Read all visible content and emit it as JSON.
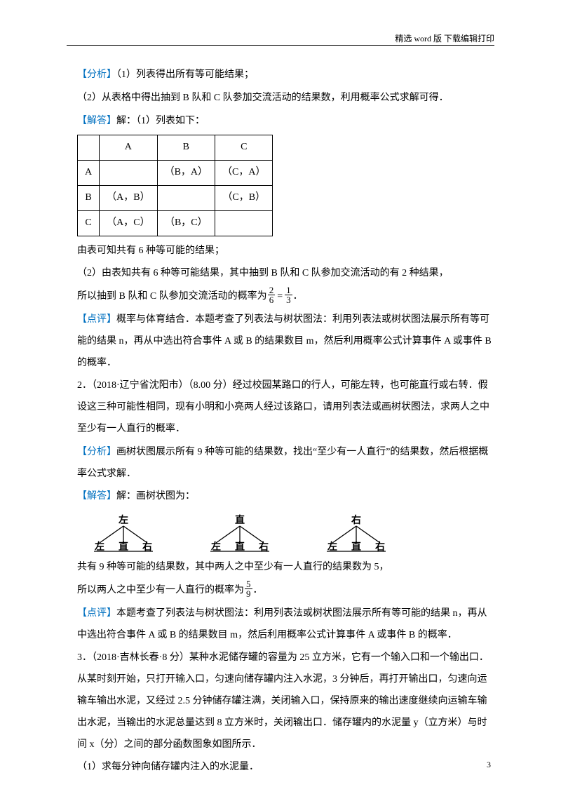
{
  "header": "精选 word 版  下载编辑打印",
  "page_number": "3",
  "colors": {
    "keyword": "#0070c0",
    "text": "#000000"
  },
  "lines": {
    "l1a": "【分析】",
    "l1b": "（1）列表得出所有等可能结果；",
    "l2": "（2）从表格中得出抽到 B 队和 C 队参加交流活动的结果数，利用概率公式求解可得．",
    "l3a": "【解答】",
    "l3b": "解：（1）列表如下：",
    "l4": "由表可知共有 6 种等可能的结果；",
    "l5": "（2）由表知共有 6 种等可能结果，其中抽到 B 队和 C 队参加交流活动的有 2 种结果，",
    "l6a": "所以抽到 B 队和 C 队参加交流活动的概率为",
    "l6_frac1_n": "2",
    "l6_frac1_d": "6",
    "l6_eq": "=",
    "l6_frac2_n": "1",
    "l6_frac2_d": "3",
    "l6_end": "．",
    "l7a": "【点评】",
    "l7b": "概率与体育结合．本题考查了列表法与树状图法：利用列表法或树状图法展示所有等可能的结果 n，再从中选出符合事件 A 或 B 的结果数目 m，然后利用概率公式计算事件 A 或事件 B 的概率．",
    "l8a": "2．（2018·辽宁省沈阳市）",
    "l8b": "（8.00 分）经过校园某路口的行人，可能左转，也可能直行或右转．假设这三种可能性相同，现有小明和小亮两人经过该路口，请用列表法或画树状图法，求两人之中至少有一人直行的概率．",
    "l9a": "【分析】",
    "l9b": "画树状图展示所有 9 种等可能的结果数，找出“至少有一人直行”的结果数，然后根据概率公式求解．",
    "l10a": "【解答】",
    "l10b": "解：画树状图为：",
    "l11": "共有 9 种等可能的结果数，其中两人之中至少有一人直行的结果数为 5，",
    "l12a": "所以两人之中至少有一人直行的概率为",
    "l12_frac_n": "5",
    "l12_frac_d": "9",
    "l12_end": "．",
    "l13a": "【点评】",
    "l13b": "本题考查了列表法与树状图法：利用列表法或树状图法展示所有等可能的结果 n，再从中选出符合事件 A 或 B 的结果数目 m，然后利用概率公式计算事件 A 或事件 B 的概率．",
    "l14a": "3．（2018·吉林长春·8 分）",
    "l14b": "某种水泥储存罐的容量为 25 立方米，它有一个输入口和一个输出口．从某时刻开始，只打开输入口，匀速向储存罐内注入水泥，3 分钟后，再打开输出口，匀速向运输车输出水泥，又经过 2.5 分钟储存罐注满，关闭输入口，保持原来的输出速度继续向运输车输出水泥，当输出的水泥总量达到 8 立方米时，关闭输出口．储存罐内的水泥量 y（立方米）与时间 x（分）之间的部分函数图象如图所示．",
    "l15": "（1）求每分钟向储存罐内注入的水泥量．"
  },
  "table": {
    "col_headers": [
      "",
      "A",
      "B",
      "C"
    ],
    "rows": [
      [
        "A",
        "",
        "（B，A）",
        "（C，A）"
      ],
      [
        "B",
        "（A，B）",
        "",
        "（C，B）"
      ],
      [
        "C",
        "（A，C）",
        "（B，C）",
        ""
      ]
    ]
  },
  "tree": {
    "roots": [
      "左",
      "直",
      "右"
    ],
    "leaves": [
      "左",
      "直",
      "右"
    ],
    "font_size": 14,
    "stroke": "#000000"
  }
}
